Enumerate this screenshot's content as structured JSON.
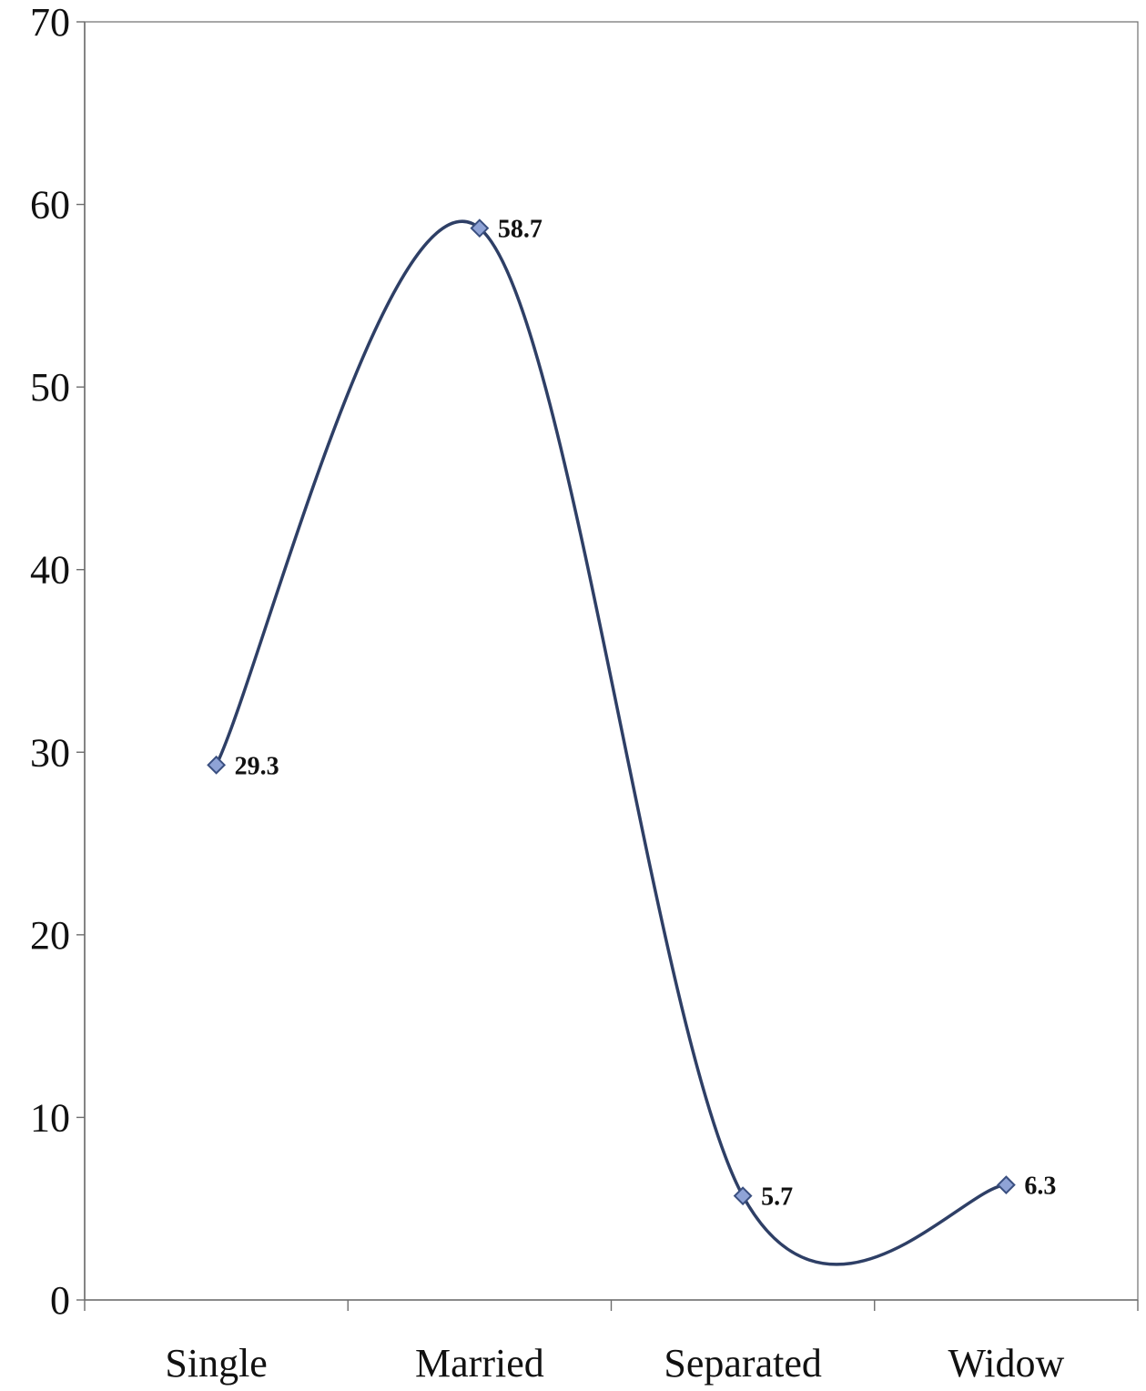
{
  "chart_data": {
    "type": "line",
    "categories": [
      "Single",
      "Married",
      "Separated",
      "Widow"
    ],
    "series": [
      {
        "values": [
          29.3,
          58.7,
          5.7,
          6.3
        ],
        "data_labels": [
          "29.3",
          "58.7",
          "5.7",
          "6.3"
        ]
      }
    ],
    "smoothed": true,
    "marker": "diamond",
    "ylim": [
      0,
      70
    ],
    "yticks": [
      "0",
      "10",
      "20",
      "30",
      "40",
      "50",
      "60",
      "70"
    ],
    "grid": false,
    "legend": "none",
    "colors": {
      "line": "#2e3f66",
      "marker_fill": "#8fa3d6",
      "marker_stroke": "#3a4f80",
      "axis": "#6d6d6d"
    }
  }
}
